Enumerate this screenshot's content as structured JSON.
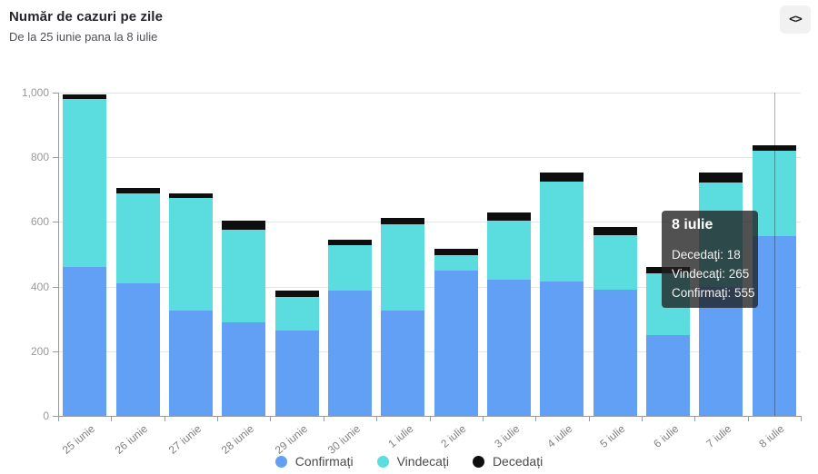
{
  "header": {
    "title": "Număr de cazuri pe zile",
    "subtitle": "De la 25 iunie pana la 8 iulie",
    "code_button_glyph": "<>"
  },
  "chart_data": {
    "type": "bar",
    "stacked": true,
    "title": "Număr de cazuri pe zile",
    "subtitle": "De la 25 iunie pana la 8 iulie",
    "categories": [
      "25 iunie",
      "26 iunie",
      "27 iunie",
      "28 iunie",
      "29 iunie",
      "30 iunie",
      "1 iulie",
      "2 iulie",
      "3 iulie",
      "4 iulie",
      "5 iulie",
      "6 iulie",
      "7 iulie",
      "8 iulie"
    ],
    "series": [
      {
        "name": "Confirmați",
        "color": "#61A0F4",
        "values": [
          460,
          410,
          325,
          290,
          265,
          388,
          326,
          450,
          420,
          416,
          391,
          250,
          400,
          555
        ]
      },
      {
        "name": "Vindecați",
        "color": "#5BDCDE",
        "values": [
          520,
          278,
          350,
          287,
          102,
          140,
          267,
          48,
          184,
          309,
          169,
          191,
          321,
          265
        ]
      },
      {
        "name": "Decedați",
        "color": "#0e0e0e",
        "values": [
          14,
          16,
          14,
          27,
          20,
          16,
          18,
          20,
          24,
          28,
          23,
          21,
          33,
          18
        ]
      }
    ],
    "ylim": [
      0,
      1000
    ],
    "yticks": [
      0,
      200,
      400,
      600,
      800,
      1000
    ],
    "ytick_labels": [
      "0",
      "200",
      "400",
      "600",
      "800",
      "1,000"
    ],
    "grid": "horizontal",
    "legend_position": "bottom",
    "focused_category": "8 iulie"
  },
  "tooltip": {
    "title": "8 iulie",
    "rows": [
      {
        "label": "Decedaţi",
        "value": "18"
      },
      {
        "label": "Vindecaţi",
        "value": "265"
      },
      {
        "label": "Confirmaţi",
        "value": "555"
      }
    ]
  }
}
